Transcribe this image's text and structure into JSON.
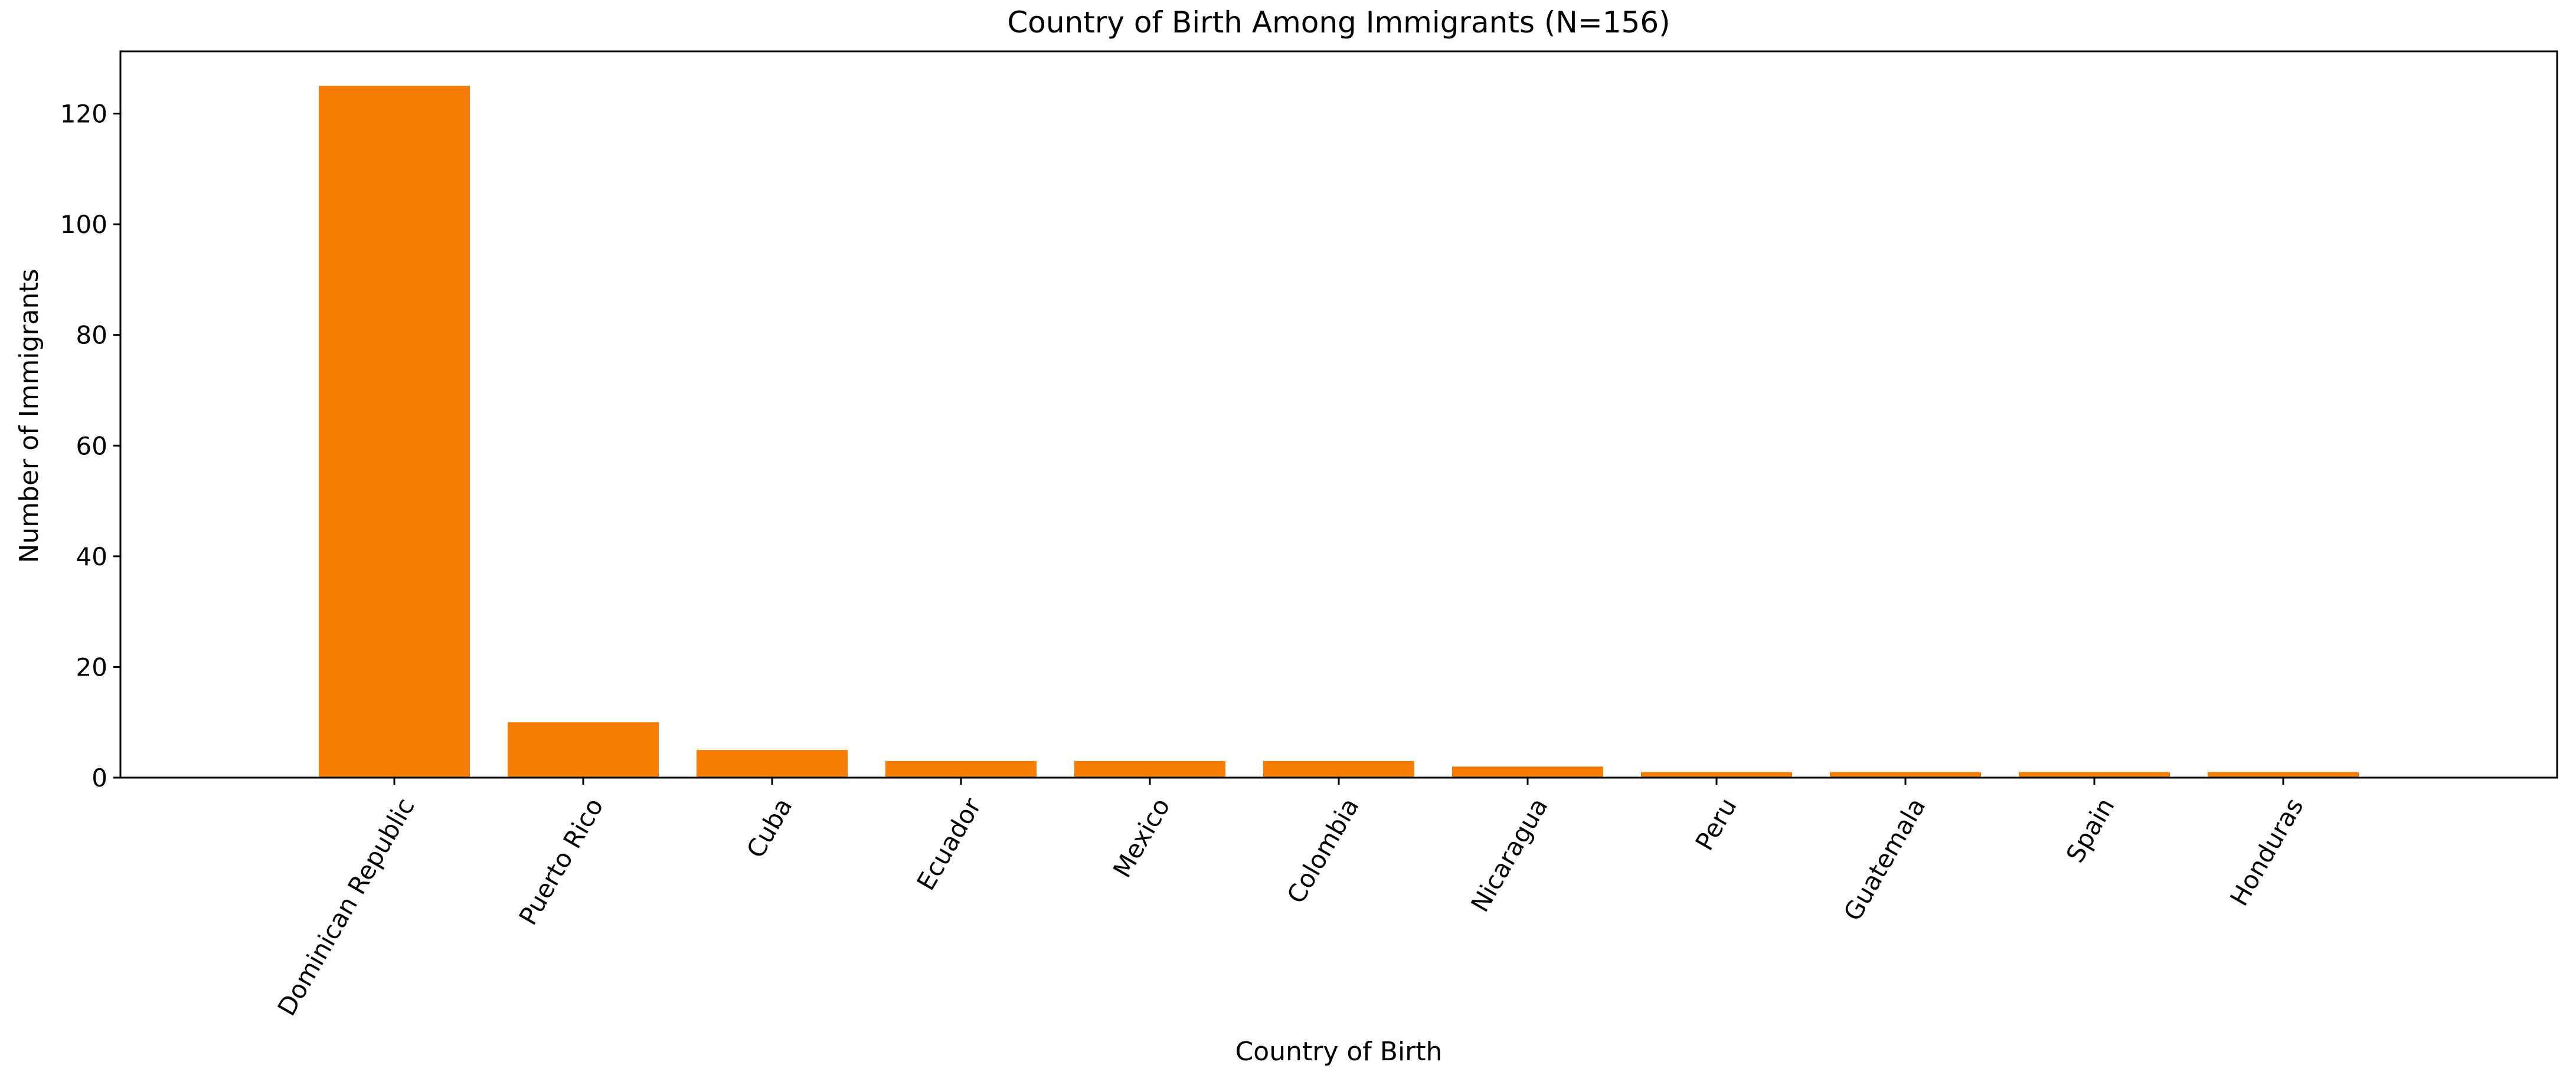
{
  "chart_data": {
    "type": "bar",
    "title": "Country of Birth Among Immigrants (N=156)",
    "xlabel": "Country of Birth",
    "ylabel": "Number of Immigrants",
    "categories": [
      "Dominican Republic",
      "Puerto Rico",
      "Cuba",
      "Ecuador",
      "Mexico",
      "Colombia",
      "Nicaragua",
      "Peru",
      "Guatemala",
      "Spain",
      "Honduras"
    ],
    "values": [
      125,
      10,
      5,
      3,
      3,
      3,
      2,
      1,
      1,
      1,
      1
    ],
    "ylim": [
      0,
      131.25
    ],
    "yticks": [
      0,
      20,
      40,
      60,
      80,
      100,
      120
    ],
    "bar_color": "#f57c00",
    "grid": false,
    "legend": "none",
    "x_tick_rotation_deg": 60
  }
}
